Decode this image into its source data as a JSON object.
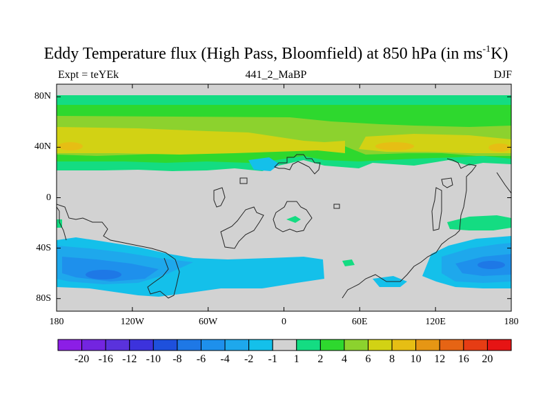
{
  "title_main": "Eddy Temperature flux (High Pass, Bloomfield) at 850 hPa (in ms",
  "title_exp": "-1",
  "title_end": "K)",
  "subtitle_left": "Expt = teYEk",
  "subtitle_center": "441_2_MaBP",
  "subtitle_right": "DJF",
  "y_ticks": [
    {
      "value": 80,
      "label": "80N"
    },
    {
      "value": 40,
      "label": "40N"
    },
    {
      "value": 0,
      "label": "0"
    },
    {
      "value": -40,
      "label": "40S"
    },
    {
      "value": -80,
      "label": "80S"
    }
  ],
  "x_ticks": [
    {
      "value": -180,
      "label": "180"
    },
    {
      "value": -120,
      "label": "120W"
    },
    {
      "value": -60,
      "label": "60W"
    },
    {
      "value": 0,
      "label": "0"
    },
    {
      "value": 60,
      "label": "60E"
    },
    {
      "value": 120,
      "label": "120E"
    },
    {
      "value": 180,
      "label": "180"
    }
  ],
  "colorbar": {
    "levels": [
      "-20",
      "-16",
      "-12",
      "-10",
      "-8",
      "-6",
      "-4",
      "-2",
      "-1",
      "1",
      "2",
      "4",
      "6",
      "8",
      "10",
      "12",
      "16",
      "20"
    ],
    "colors": [
      "#8c1ee6",
      "#7325e0",
      "#5a32dc",
      "#3c32dc",
      "#1e50dc",
      "#1e78e6",
      "#1e90ec",
      "#1ea8ec",
      "#14c0ea",
      "#d2d2d2",
      "#14dc82",
      "#2ed82e",
      "#8cd22e",
      "#d2d214",
      "#e6be14",
      "#e69614",
      "#e66414",
      "#e63c14",
      "#e61414"
    ]
  },
  "field_colors": {
    "background": "#d2d2d2",
    "pos1": "#14dc82",
    "pos2": "#2ed82e",
    "pos4": "#8cd22e",
    "pos6": "#d2d214",
    "pos8": "#e6be14",
    "neg2": "#14c0ea",
    "neg4": "#1ea8ec",
    "neg6": "#1e90ec",
    "neg8": "#1e78e6",
    "neg10": "#1e50dc",
    "coast": "#222222"
  }
}
